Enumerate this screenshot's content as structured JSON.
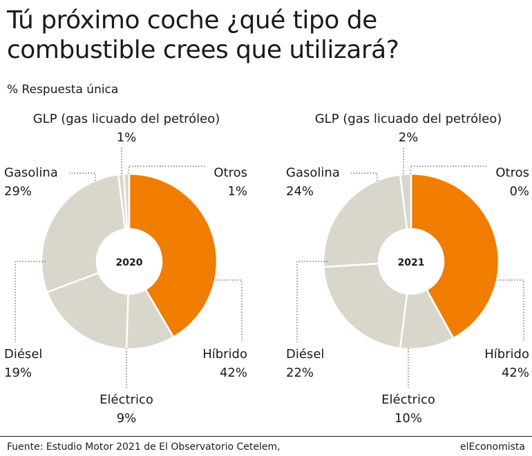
{
  "title": "Tú próximo coche ¿qué tipo de combustible crees que utilizará?",
  "subtitle": "% Respuesta única",
  "source": "Fuente: Estudio Motor 2021 de El Observatorio Cetelem,",
  "brand": "elEconomista",
  "colors": {
    "highlight": "#f07d00",
    "neutral": "#d9d6cc",
    "text": "#1a1a1a",
    "leader": "#555555"
  },
  "chart_data": [
    {
      "type": "pie",
      "center_label": "2020",
      "slices": [
        {
          "name": "Híbrido",
          "value": 42,
          "label": "42%",
          "color": "#f07d00"
        },
        {
          "name": "Eléctrico",
          "value": 9,
          "label": "9%",
          "color": "#d9d6cc"
        },
        {
          "name": "Diésel",
          "value": 19,
          "label": "19%",
          "color": "#d9d6cc"
        },
        {
          "name": "Gasolina",
          "value": 29,
          "label": "29%",
          "color": "#d9d6cc"
        },
        {
          "name": "GLP (gas licuado del petróleo)",
          "value": 1,
          "label": "1%",
          "color": "#d9d6cc"
        },
        {
          "name": "Otros",
          "value": 1,
          "label": "1%",
          "color": "#d9d6cc"
        }
      ]
    },
    {
      "type": "pie",
      "center_label": "2021",
      "slices": [
        {
          "name": "Híbrido",
          "value": 42,
          "label": "42%",
          "color": "#f07d00"
        },
        {
          "name": "Eléctrico",
          "value": 10,
          "label": "10%",
          "color": "#d9d6cc"
        },
        {
          "name": "Diésel",
          "value": 22,
          "label": "22%",
          "color": "#d9d6cc"
        },
        {
          "name": "Gasolina",
          "value": 24,
          "label": "24%",
          "color": "#d9d6cc"
        },
        {
          "name": "GLP (gas licuado del petróleo)",
          "value": 2,
          "label": "2%",
          "color": "#d9d6cc"
        },
        {
          "name": "Otros",
          "value": 0,
          "label": "0%",
          "color": "#d9d6cc"
        }
      ]
    }
  ]
}
